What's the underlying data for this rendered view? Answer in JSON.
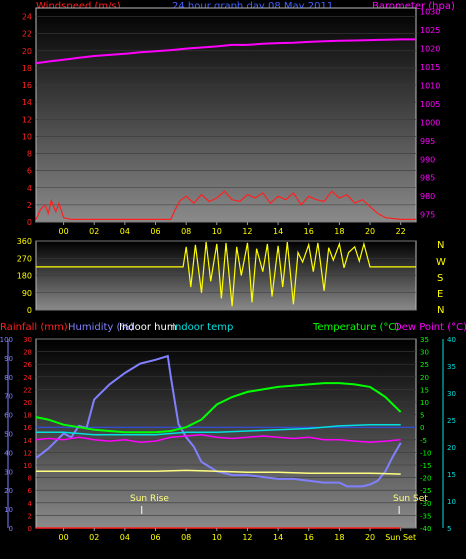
{
  "header": {
    "left_title": "Windspeed (m/s)",
    "center_title": "24 hour graph day  08 May 2011",
    "right_title": "Barometer (hpa)"
  },
  "direction_labels": [
    "N",
    "W",
    "S",
    "E",
    "N"
  ],
  "lower_labels": {
    "rain": "Rainfall (mm)",
    "humidity": "Humidity (%)",
    "indoor_hum": "Indoor hum",
    "indoor_temp": "Indoor temp",
    "temperature": "Temperature (°C)",
    "dewpoint": "Dew Point (°C)",
    "sunrise": "Sun Rise",
    "sunset": "Sun Set"
  },
  "colors": {
    "wind": "#ff2020",
    "gust": "#ff2020",
    "wind_avg": "#8ab0ff",
    "baro": "#ff00ff",
    "direction": "#ffff00",
    "rain": "#ff2020",
    "humidity": "#8080ff",
    "indoor_hum": "#ffff80",
    "indoor_temp": "#00e0e0",
    "temperature": "#00ff00",
    "dewpoint": "#ff00ff",
    "center_title": "#4060ff"
  },
  "chart_data": [
    {
      "type": "line",
      "title": "24 hour graph day  08 May 2011",
      "xlabel": "",
      "x_ticks": [
        "00",
        "02",
        "04",
        "06",
        "08",
        "10",
        "12",
        "14",
        "16",
        "18",
        "20",
        "22"
      ],
      "xlim": [
        -1.8,
        23
      ],
      "y_left": {
        "label": "Windspeed (m/s)",
        "lim": [
          0,
          25
        ],
        "ticks": [
          0,
          2,
          4,
          6,
          8,
          10,
          12,
          14,
          16,
          18,
          20,
          22,
          24
        ]
      },
      "y_right": {
        "label": "Barometer (hpa)",
        "lim": [
          973,
          1031
        ],
        "ticks": [
          975,
          980,
          985,
          990,
          995,
          1000,
          1005,
          1010,
          1015,
          1020,
          1025,
          1030
        ]
      },
      "series": [
        {
          "name": "Windspeed (m/s)",
          "axis": "left",
          "x": [
            -1.8,
            -1.5,
            -1.2,
            -1.0,
            -0.8,
            -0.5,
            -0.3,
            0,
            0.5,
            1,
            1.5,
            2,
            3,
            4,
            5,
            6,
            7,
            7.3,
            7.6,
            8,
            8.5,
            9,
            9.5,
            10,
            10.5,
            11,
            11.5,
            12,
            12.5,
            13,
            13.5,
            14,
            14.5,
            15,
            15.5,
            16,
            16.5,
            17,
            17.5,
            18,
            18.5,
            19,
            19.5,
            20,
            20.5,
            21,
            22,
            23
          ],
          "values": [
            0.3,
            1.5,
            2.0,
            1.0,
            2.5,
            1.2,
            2.2,
            0.5,
            0.3,
            0.3,
            0.3,
            0.3,
            0.3,
            0.3,
            0.3,
            0.3,
            0.3,
            1.5,
            2.5,
            3.0,
            2.2,
            3.2,
            2.4,
            2.8,
            3.6,
            2.6,
            2.4,
            3.2,
            2.8,
            3.4,
            2.2,
            3.0,
            2.6,
            3.4,
            2.0,
            3.0,
            2.6,
            2.4,
            3.6,
            2.8,
            3.2,
            2.2,
            2.6,
            1.8,
            1.0,
            0.5,
            0.3,
            0.3
          ]
        },
        {
          "name": "Barometer (hpa)",
          "axis": "right",
          "x": [
            -1.8,
            -1,
            0,
            1,
            2,
            3,
            4,
            5,
            6,
            7,
            8,
            9,
            10,
            11,
            12,
            13,
            14,
            15,
            16,
            17,
            18,
            19,
            20,
            21,
            22,
            23
          ],
          "values": [
            1016,
            1016.5,
            1017,
            1017.5,
            1018,
            1018.3,
            1018.6,
            1019,
            1019.3,
            1019.6,
            1020,
            1020.3,
            1020.6,
            1021,
            1021,
            1021.3,
            1021.5,
            1021.6,
            1021.8,
            1022,
            1022.1,
            1022.2,
            1022.3,
            1022.4,
            1022.5,
            1022.5
          ]
        }
      ]
    },
    {
      "type": "scatter",
      "title": "",
      "xlim": [
        -1.8,
        23
      ],
      "y_left": {
        "label": "",
        "lim": [
          0,
          360
        ],
        "ticks": [
          0,
          90,
          180,
          270,
          360
        ]
      },
      "series": [
        {
          "name": "",
          "x": [
            -1.8,
            0,
            2,
            4,
            6,
            7,
            7.4,
            7.8,
            8,
            8.3,
            8.6,
            9,
            9.3,
            9.6,
            10,
            10.3,
            10.6,
            11,
            11.3,
            11.6,
            12,
            12.3,
            12.6,
            13,
            13.3,
            13.6,
            14,
            14.3,
            14.6,
            15,
            15.3,
            15.6,
            16,
            16.3,
            16.6,
            17,
            17.3,
            17.6,
            18,
            18.3,
            18.6,
            19,
            19.3,
            19.6,
            20,
            21,
            22,
            23
          ],
          "values": [
            225,
            225,
            225,
            225,
            225,
            225,
            225,
            225,
            330,
            120,
            340,
            90,
            355,
            150,
            345,
            60,
            350,
            20,
            330,
            180,
            350,
            40,
            320,
            200,
            345,
            70,
            335,
            120,
            355,
            30,
            300,
            250,
            340,
            200,
            350,
            100,
            325,
            260,
            345,
            220,
            300,
            330,
            255,
            345,
            225,
            225,
            225,
            225
          ]
        }
      ]
    },
    {
      "type": "line",
      "title": "",
      "x_ticks": [
        "00",
        "02",
        "04",
        "06",
        "08",
        "10",
        "12",
        "14",
        "16",
        "18",
        "20",
        "Sun Set"
      ],
      "xlim": [
        -1.8,
        23
      ],
      "y_left": {
        "label": "Humidity (%)",
        "lim": [
          0,
          100
        ],
        "ticks": [
          0,
          10,
          20,
          30,
          40,
          50,
          60,
          70,
          80,
          90,
          100
        ]
      },
      "y_rain": {
        "label": "Rainfall (mm)",
        "lim": [
          0,
          30
        ],
        "ticks": [
          0,
          2,
          4,
          6,
          8,
          10,
          12,
          14,
          16,
          18,
          20,
          22,
          24,
          26,
          28,
          30
        ]
      },
      "y_right": {
        "label": "Temperature (°C)",
        "lim": [
          -40,
          35
        ],
        "ticks": [
          -40,
          -35,
          -30,
          -25,
          -20,
          -15,
          -10,
          -5,
          0,
          5,
          10,
          15,
          20,
          25,
          30,
          35
        ]
      },
      "y_right2": {
        "label": "Dew Point (°C)",
        "lim": [
          5,
          40
        ],
        "ticks": [
          5,
          10,
          15,
          20,
          25,
          30,
          35,
          40
        ]
      },
      "series": [
        {
          "name": "Humidity (%)",
          "axis": "left",
          "x": [
            -1.8,
            -1,
            0,
            0.5,
            1,
            1.5,
            2,
            3,
            4,
            5,
            6,
            6.8,
            7,
            7.5,
            8,
            8.5,
            9,
            10,
            11,
            12,
            13,
            14,
            15,
            16,
            17,
            18,
            18.5,
            19,
            19.5,
            20,
            20.5,
            21,
            21.5,
            22
          ],
          "values": [
            37,
            42,
            50,
            48,
            54,
            53,
            68,
            76,
            82,
            87,
            89,
            91,
            80,
            55,
            48,
            43,
            35,
            30,
            28,
            28,
            27,
            26,
            26,
            25,
            24,
            24,
            22,
            22,
            22,
            23,
            25,
            30,
            38,
            45
          ]
        },
        {
          "name": "Temperature (°C)",
          "axis": "right",
          "x": [
            -1.8,
            -1,
            0,
            1,
            2,
            3,
            4,
            5,
            6,
            7,
            8,
            9,
            10,
            11,
            12,
            13,
            14,
            15,
            16,
            17,
            18,
            19,
            20,
            20.5,
            21,
            21.5,
            22
          ],
          "values": [
            4,
            3,
            1,
            0,
            -1,
            -1.5,
            -2,
            -2,
            -2,
            -1.5,
            0,
            3,
            9,
            12,
            14,
            15,
            16,
            16.5,
            17,
            17.5,
            17.5,
            17,
            16,
            14,
            12,
            9,
            6
          ]
        },
        {
          "name": "Dew Point (°C)",
          "axis": "right",
          "x": [
            -1.8,
            -1,
            0,
            1,
            2,
            3,
            4,
            5,
            6,
            7,
            8,
            9,
            10,
            11,
            12,
            13,
            14,
            15,
            16,
            17,
            18,
            19,
            20,
            21,
            22
          ],
          "values": [
            -5,
            -4.5,
            -5,
            -4,
            -5,
            -5.5,
            -5,
            -6,
            -5.5,
            -4,
            -3.5,
            -3,
            -4,
            -4.5,
            -4,
            -3.5,
            -4,
            -4.5,
            -4,
            -5,
            -5,
            -5.5,
            -6,
            -5.5,
            -5
          ]
        },
        {
          "name": "Indoor temp",
          "axis": "right",
          "x": [
            -1.8,
            0,
            2,
            4,
            6,
            8,
            10,
            12,
            14,
            16,
            18,
            20,
            22
          ],
          "values": [
            -2,
            -2,
            -3,
            -3,
            -3,
            -2,
            -2,
            -1.5,
            -1,
            -0.5,
            0.5,
            1,
            1
          ]
        },
        {
          "name": "Indoor hum",
          "axis": "left",
          "x": [
            -1.8,
            0,
            2,
            4,
            6,
            8,
            10,
            12,
            14,
            16,
            18,
            20,
            22
          ],
          "values": [
            30,
            30,
            30,
            30,
            30,
            30.5,
            30,
            29.5,
            29.5,
            29,
            29,
            29,
            28.5
          ]
        },
        {
          "name": "Rainfall (mm)",
          "axis": "rain",
          "x": [
            -1.8,
            22
          ],
          "values": [
            0,
            0
          ]
        }
      ]
    }
  ]
}
